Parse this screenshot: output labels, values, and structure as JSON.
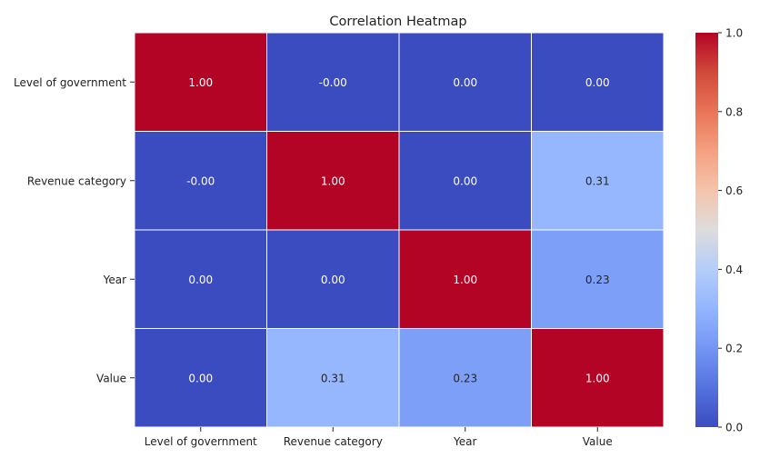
{
  "chart_data": {
    "type": "heatmap",
    "title": "Correlation Heatmap",
    "rows": [
      "Level of government",
      "Revenue category",
      "Year",
      "Value"
    ],
    "cols": [
      "Level of government",
      "Revenue category",
      "Year",
      "Value"
    ],
    "values": [
      [
        1.0,
        -0.0,
        0.0,
        0.0
      ],
      [
        -0.0,
        1.0,
        0.0,
        0.31
      ],
      [
        0.0,
        0.0,
        1.0,
        0.23
      ],
      [
        0.0,
        0.31,
        0.23,
        1.0
      ]
    ],
    "cell_labels": [
      [
        "1.00",
        "-0.00",
        "0.00",
        "0.00"
      ],
      [
        "-0.00",
        "1.00",
        "0.00",
        "0.31"
      ],
      [
        "0.00",
        "0.00",
        "1.00",
        "0.23"
      ],
      [
        "0.00",
        "0.31",
        "0.23",
        "1.00"
      ]
    ],
    "colormap": "coolwarm",
    "colorbar": {
      "range": [
        0.0,
        1.0
      ],
      "ticks": [
        0.0,
        0.2,
        0.4,
        0.6,
        0.8,
        1.0
      ],
      "tick_labels": [
        "0.0",
        "0.2",
        "0.4",
        "0.6",
        "0.8",
        "1.0"
      ]
    },
    "cell_border_color": "#ffffff"
  }
}
